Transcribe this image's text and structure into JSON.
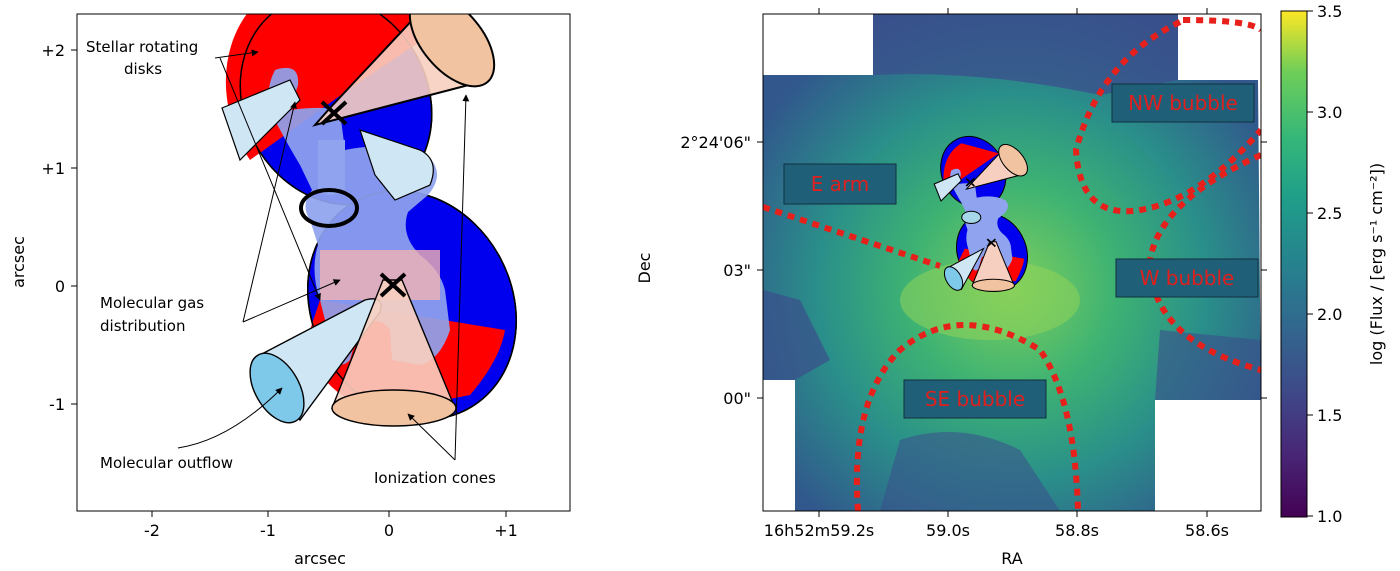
{
  "left_panel": {
    "xlabel": "arcsec",
    "ylabel": "arcsec",
    "x_ticks": [
      "-2",
      "-1",
      "0",
      "+1"
    ],
    "y_ticks": [
      "+2",
      "+1",
      "0",
      "-1"
    ],
    "annotations": {
      "stellar_disks": [
        "Stellar rotating",
        "disks"
      ],
      "molecular_gas": [
        "Molecular gas",
        "distribution"
      ],
      "molecular_outflow": "Molecular outflow",
      "ionization_cones": "Ionization cones"
    },
    "nucleus_marker": "×"
  },
  "right_panel": {
    "xlabel": "RA",
    "ylabel": "Dec",
    "x_ticks": [
      "16h52m59.2s",
      "59.0s",
      "58.8s",
      "58.6s"
    ],
    "y_ticks": [
      "2°24'06\"",
      "03\"",
      "00\""
    ],
    "regions": [
      "NW bubble",
      "E arm",
      "W bubble",
      "SE bubble"
    ],
    "colorbar": {
      "label": "log (Flux / [erg s⁻¹ cm⁻²])",
      "ticks": [
        "3.5",
        "3.0",
        "2.5",
        "2.0",
        "1.5",
        "1.0"
      ],
      "colormap": "viridis",
      "range": [
        1.0,
        3.5
      ]
    }
  },
  "colors": {
    "red_disk": "#ff0000",
    "blue_disk": "#0000ee",
    "molecular_gas": "#8fa3ee",
    "outflow": "#cfe6f5",
    "outflow_end": "#7ec8ea",
    "cone": "#f7cfc0",
    "cone_end": "#f2c3a0",
    "bubble_line": "#e8201b",
    "label_box": "#1f5f78"
  }
}
